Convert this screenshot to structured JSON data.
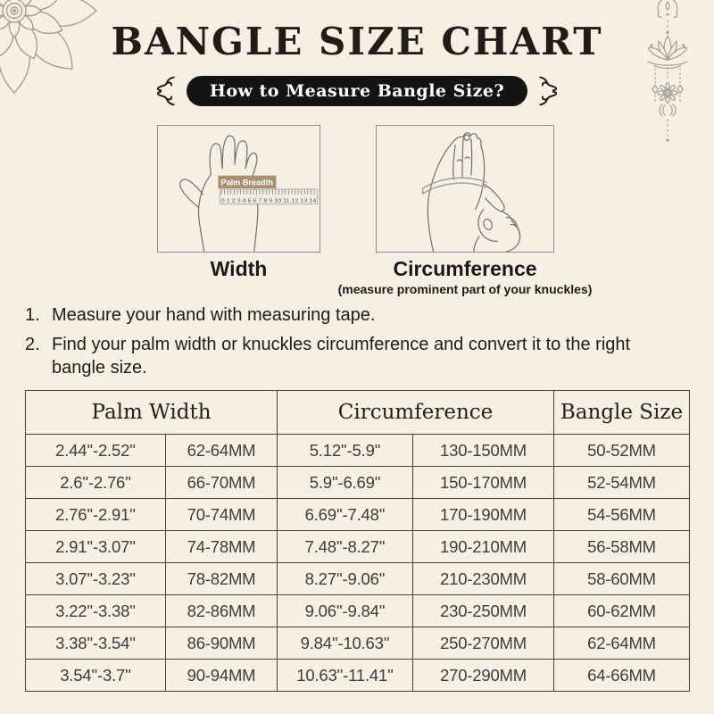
{
  "header": {
    "title": "BANGLE SIZE CHART",
    "badge": "How to Measure Bangle Size?"
  },
  "figures": {
    "width_label": "Width",
    "circumference_label": "Circumference",
    "circumference_caption": "(measure prominent part of your knuckles)",
    "palm_breadth_tag": "Palm Breadth",
    "ruler_numbers": "0 1 2 3 4 5 6 7 8 9 10 11 12 13 14"
  },
  "instructions": {
    "items": [
      {
        "num": "1.",
        "text": "Measure your hand with measuring tape."
      },
      {
        "num": "2.",
        "text": "Find your palm width or knuckles circumference and convert it to the right bangle size."
      }
    ]
  },
  "table": {
    "headers": [
      "Palm Width",
      "Circumference",
      "Bangle Size"
    ],
    "rows": [
      [
        "2.44''-2.52''",
        "62-64MM",
        "5.12''-5.9''",
        "130-150MM",
        "50-52MM"
      ],
      [
        "2.6''-2.76''",
        "66-70MM",
        "5.9''-6.69''",
        "150-170MM",
        "52-54MM"
      ],
      [
        "2.76''-2.91''",
        "70-74MM",
        "6.69''-7.48''",
        "170-190MM",
        "54-56MM"
      ],
      [
        "2.91''-3.07''",
        "74-78MM",
        "7.48''-8.27''",
        "190-210MM",
        "56-58MM"
      ],
      [
        "3.07''-3.23''",
        "78-82MM",
        "8.27''-9.06''",
        "210-230MM",
        "58-60MM"
      ],
      [
        "3.22''-3.38''",
        "82-86MM",
        "9.06''-9.84''",
        "230-250MM",
        "60-62MM"
      ],
      [
        "3.38''-3.54''",
        "86-90MM",
        "9.84''-10.63''",
        "250-270MM",
        "62-64MM"
      ],
      [
        "3.54''-3.7''",
        "90-94MM",
        "10.63''-11.41''",
        "270-290MM",
        "64-66MM"
      ]
    ]
  },
  "colors": {
    "background": "#f5f0e3",
    "ink": "#211c17",
    "badge_bg": "#141414",
    "badge_text": "#ffffff",
    "table_border": "#47423d",
    "cell_text": "#3d3d3d",
    "header_text": "#24201b",
    "tag_bg": "#a8916f",
    "deco": "#a39f96",
    "line": "#6e6e6e",
    "box_border": "#8f8f8f"
  }
}
